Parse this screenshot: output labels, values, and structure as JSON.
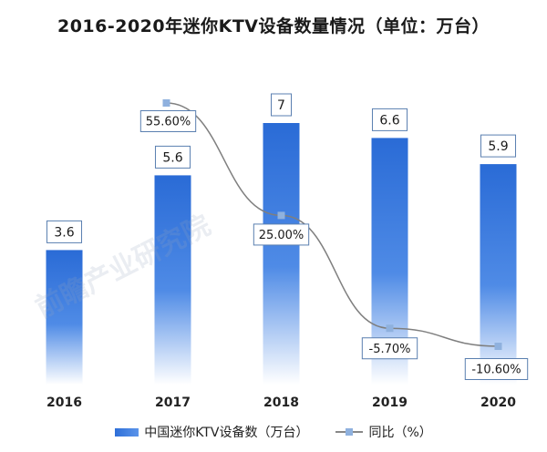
{
  "title": "2016-2020年迷你KTV设备数量情况（单位：万台）",
  "watermark": "前瞻产业研究院",
  "colors": {
    "bar_top": "#2a6bd6",
    "bar_bottom": "#ffffff",
    "line": "#7f7f7f",
    "marker": "#8fb1de",
    "label_border": "#5a7fb0"
  },
  "chart_data": {
    "type": "bar+line",
    "title": "2016-2020年迷你KTV设备数量情况（单位：万台）",
    "categories": [
      "2016",
      "2017",
      "2018",
      "2019",
      "2020"
    ],
    "series": [
      {
        "name": "中国迷你KTV设备数（万台）",
        "type": "bar",
        "values": [
          3.6,
          5.6,
          7,
          6.6,
          5.9
        ],
        "labels": [
          "3.6",
          "5.6",
          "7",
          "6.6",
          "5.9"
        ]
      },
      {
        "name": "同比（%）",
        "type": "line",
        "values": [
          null,
          55.6,
          25.0,
          -5.7,
          -10.6
        ],
        "labels": [
          "",
          "55.60%",
          "25.00%",
          "-5.70%",
          "-10.60%"
        ]
      }
    ],
    "bar_ylim": [
      0,
      7.5
    ],
    "line_ylim": [
      -12,
      59
    ],
    "grid": false,
    "legend_position": "bottom"
  },
  "legend": {
    "bar_label": "中国迷你KTV设备数（万台）",
    "line_label": "同比（%）"
  }
}
